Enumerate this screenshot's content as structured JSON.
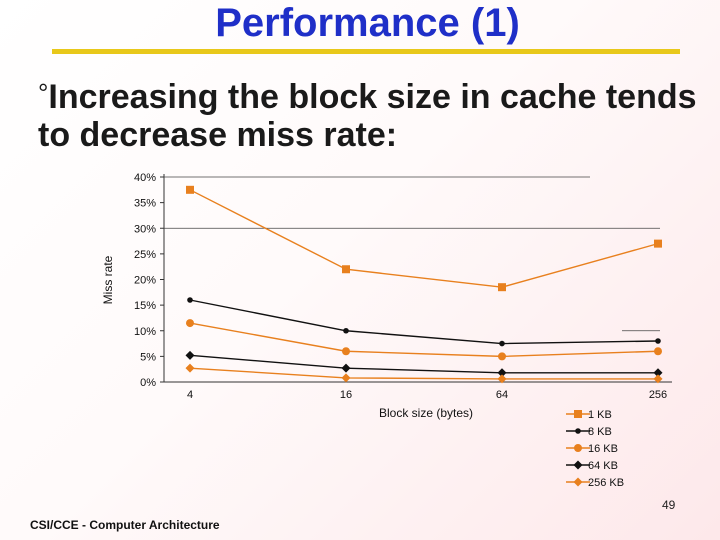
{
  "slide": {
    "title": "Performance (1)",
    "bullet_mark": "°",
    "bullet_text": "Increasing the block size in cache tends to decrease miss rate:",
    "footer": "CSI/CCE - Computer Architecture",
    "page_number": "49"
  },
  "chart_data": {
    "type": "line",
    "title": "",
    "xlabel": "Block size (bytes)",
    "ylabel": "Miss rate",
    "categories": [
      "4",
      "16",
      "64",
      "256"
    ],
    "yticks": [
      "0%",
      "5%",
      "10%",
      "15%",
      "20%",
      "25%",
      "30%",
      "35%",
      "40%"
    ],
    "ylim": [
      0,
      40
    ],
    "legend_position": "bottom-right",
    "series": [
      {
        "name": "1 KB",
        "values": [
          37.5,
          22.0,
          18.5,
          27.0
        ],
        "color": "#e8801e",
        "marker": "square"
      },
      {
        "name": "8 KB",
        "values": [
          16.0,
          10.0,
          7.5,
          8.0
        ],
        "color": "#111111",
        "marker": "dot"
      },
      {
        "name": "16 KB",
        "values": [
          11.5,
          6.0,
          5.0,
          6.0
        ],
        "color": "#e8801e",
        "marker": "circle"
      },
      {
        "name": "64 KB",
        "values": [
          5.2,
          2.7,
          1.8,
          1.8
        ],
        "color": "#111111",
        "marker": "diamond"
      },
      {
        "name": "256 KB",
        "values": [
          2.7,
          0.8,
          0.6,
          0.6
        ],
        "color": "#e8801e",
        "marker": "diamond"
      }
    ]
  }
}
